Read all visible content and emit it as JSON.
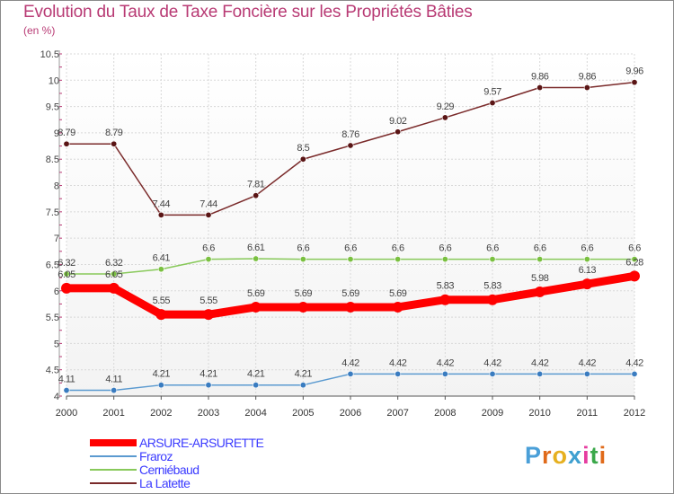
{
  "title": "Evolution du Taux de Taxe Foncière sur les Propriétés Bâties",
  "unit": "(en %)",
  "logo": {
    "letters": [
      "P",
      "r",
      "o",
      "x",
      "i",
      "t",
      "i"
    ],
    "colors": [
      "#4a9fd8",
      "#e06a1a",
      "#e6b020",
      "#3fa0d0",
      "#e63ca0",
      "#3aa84a",
      "#e06a1a"
    ]
  },
  "chart_data": {
    "type": "line",
    "title": "Evolution du Taux de Taxe Foncière sur les Propriétés Bâties",
    "ylabel": "(en %)",
    "xlabel": "",
    "ylim": [
      4,
      10.5
    ],
    "yticks": [
      "4",
      "4.5",
      "5",
      "5.5",
      "6",
      "6.5",
      "7",
      "7.5",
      "8",
      "8.5",
      "9",
      "9.5",
      "10",
      "10.5"
    ],
    "categories": [
      "2000",
      "2001",
      "2002",
      "2003",
      "2004",
      "2005",
      "2006",
      "2007",
      "2008",
      "2009",
      "2010",
      "2011",
      "2012"
    ],
    "legend_position": "bottom-left",
    "series": [
      {
        "name": "La Latette",
        "color": "#7a2a2a",
        "marker": "#5a1515",
        "values": [
          8.79,
          8.79,
          7.44,
          7.44,
          7.81,
          8.5,
          8.76,
          9.02,
          9.29,
          9.57,
          9.86,
          9.86,
          9.96
        ],
        "labels": [
          "8.79",
          "8.79",
          "7.44",
          "7.44",
          "7.81",
          "8.5",
          "8.76",
          "9.02",
          "9.29",
          "9.57",
          "9.86",
          "9.86",
          "9.96"
        ]
      },
      {
        "name": "Cerniébaud",
        "color": "#88c95a",
        "marker": "#7ac040",
        "values": [
          6.32,
          6.32,
          6.41,
          6.6,
          6.61,
          6.6,
          6.6,
          6.6,
          6.6,
          6.6,
          6.6,
          6.6,
          6.6
        ],
        "labels": [
          "6.32",
          "6.32",
          "6.41",
          "6.6",
          "6.61",
          "6.6",
          "6.6",
          "6.6",
          "6.6",
          "6.6",
          "6.6",
          "6.6",
          "6.6"
        ]
      },
      {
        "name": "ARSURE-ARSURETTE",
        "color": "#ff0000",
        "marker": "#ff0000",
        "bold": true,
        "values": [
          6.05,
          6.05,
          5.55,
          5.55,
          5.69,
          5.69,
          5.69,
          5.69,
          5.83,
          5.83,
          5.98,
          6.13,
          6.28
        ],
        "labels": [
          "6.05",
          "6.05",
          "5.55",
          "5.55",
          "5.69",
          "5.69",
          "5.69",
          "5.69",
          "5.83",
          "5.83",
          "5.98",
          "6.13",
          "6.28"
        ]
      },
      {
        "name": "Fraroz",
        "color": "#5b9ad0",
        "marker": "#3a7cc0",
        "values": [
          4.11,
          4.11,
          4.21,
          4.21,
          4.21,
          4.21,
          4.42,
          4.42,
          4.42,
          4.42,
          4.42,
          4.42,
          4.42
        ],
        "labels": [
          "4.11",
          "4.11",
          "4.21",
          "4.21",
          "4.21",
          "4.21",
          "4.42",
          "4.42",
          "4.42",
          "4.42",
          "4.42",
          "4.42",
          "4.42"
        ]
      }
    ],
    "legend": [
      {
        "name": "ARSURE-ARSURETTE",
        "color": "#ff0000",
        "text_color": "#3b3bff",
        "bold": true
      },
      {
        "name": "Fraroz",
        "color": "#5b9ad0",
        "text_color": "#3b3bff"
      },
      {
        "name": "Cerniébaud",
        "color": "#88c95a",
        "text_color": "#3b3bff"
      },
      {
        "name": "La Latette",
        "color": "#7a2a2a",
        "text_color": "#3b3bff"
      }
    ]
  }
}
